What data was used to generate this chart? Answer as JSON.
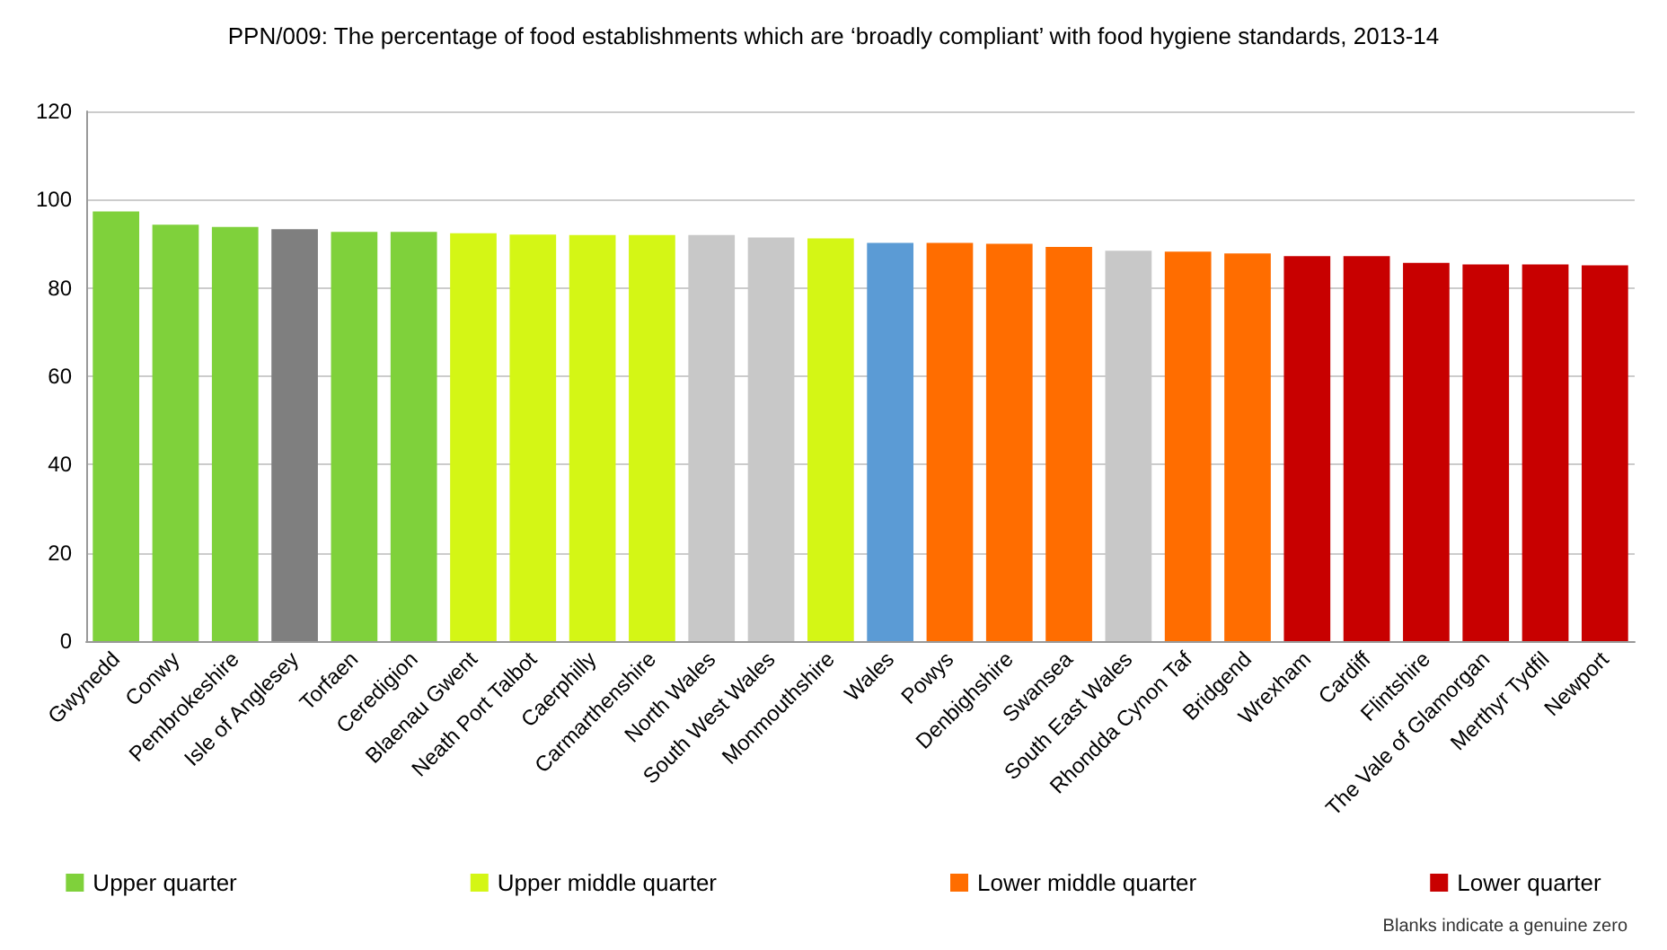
{
  "chart_data": {
    "type": "bar",
    "title": "PPN/009: The percentage of food establishments which are ‘broadly compliant’ with food hygiene standards, 2013-14",
    "categories": [
      "Gwynedd",
      "Conwy",
      "Pembrokeshire",
      "Isle of Anglesey",
      "Torfaen",
      "Ceredigion",
      "Blaenau Gwent",
      "Neath Port Talbot",
      "Caerphilly",
      "Carmarthenshire",
      "North Wales",
      "South West Wales",
      "Monmouthshire",
      "Wales",
      "Powys",
      "Denbighshire",
      "Swansea",
      "South East Wales",
      "Rhondda Cynon Taf",
      "Bridgend",
      "Wrexham",
      "Cardiff",
      "Flintshire",
      "The Vale of Glamorgan",
      "Merthyr Tydfil",
      "Newport"
    ],
    "series": [
      {
        "name": "Upper quarter",
        "color": "#7fd13b",
        "values": [
          97.3,
          94.3,
          93.8,
          null,
          92.7,
          92.7,
          null,
          null,
          null,
          null,
          null,
          null,
          null,
          null,
          null,
          null,
          null,
          null,
          null,
          null,
          null,
          null,
          null,
          null,
          null,
          null
        ]
      },
      {
        "name": "Upper middle quarter",
        "color": "#d4f615",
        "values": [
          null,
          null,
          null,
          null,
          null,
          null,
          92.4,
          92.1,
          92.0,
          92.0,
          null,
          null,
          91.2,
          null,
          null,
          null,
          null,
          null,
          null,
          null,
          null,
          null,
          null,
          null,
          null,
          null
        ]
      },
      {
        "name": "Lower middle quarter",
        "color": "#ff6d00",
        "values": [
          null,
          null,
          null,
          null,
          null,
          null,
          null,
          null,
          null,
          null,
          null,
          null,
          null,
          null,
          90.2,
          90.0,
          89.3,
          null,
          88.2,
          87.8,
          null,
          null,
          null,
          null,
          null,
          null
        ]
      },
      {
        "name": "Lower quarter",
        "color": "#c80000",
        "values": [
          null,
          null,
          null,
          null,
          null,
          null,
          null,
          null,
          null,
          null,
          null,
          null,
          null,
          null,
          null,
          null,
          null,
          null,
          null,
          null,
          87.2,
          87.2,
          85.7,
          85.3,
          85.3,
          85.1
        ]
      },
      {
        "color": "#7f7f7f",
        "values": [
          null,
          null,
          null,
          93.3,
          null,
          null,
          null,
          null,
          null,
          null,
          null,
          null,
          null,
          null,
          null,
          null,
          null,
          null,
          null,
          null,
          null,
          null,
          null,
          null,
          null,
          null
        ]
      },
      {
        "color": "#c8c8c8",
        "values": [
          null,
          null,
          null,
          null,
          null,
          null,
          null,
          null,
          null,
          null,
          92.0,
          91.4,
          null,
          null,
          null,
          null,
          null,
          88.4,
          null,
          null,
          null,
          null,
          null,
          null,
          null,
          null
        ]
      },
      {
        "color": "#5b9bd5",
        "values": [
          null,
          null,
          null,
          null,
          null,
          null,
          null,
          null,
          null,
          null,
          null,
          null,
          null,
          90.2,
          null,
          null,
          null,
          null,
          null,
          null,
          null,
          null,
          null,
          null,
          null,
          null
        ]
      }
    ],
    "ylim": [
      0,
      120
    ],
    "yticks": [
      0,
      20,
      40,
      60,
      80,
      100,
      120
    ],
    "grid": "y",
    "legend": "bottom",
    "annotations": [
      "Blanks indicate a genuine zero"
    ]
  }
}
